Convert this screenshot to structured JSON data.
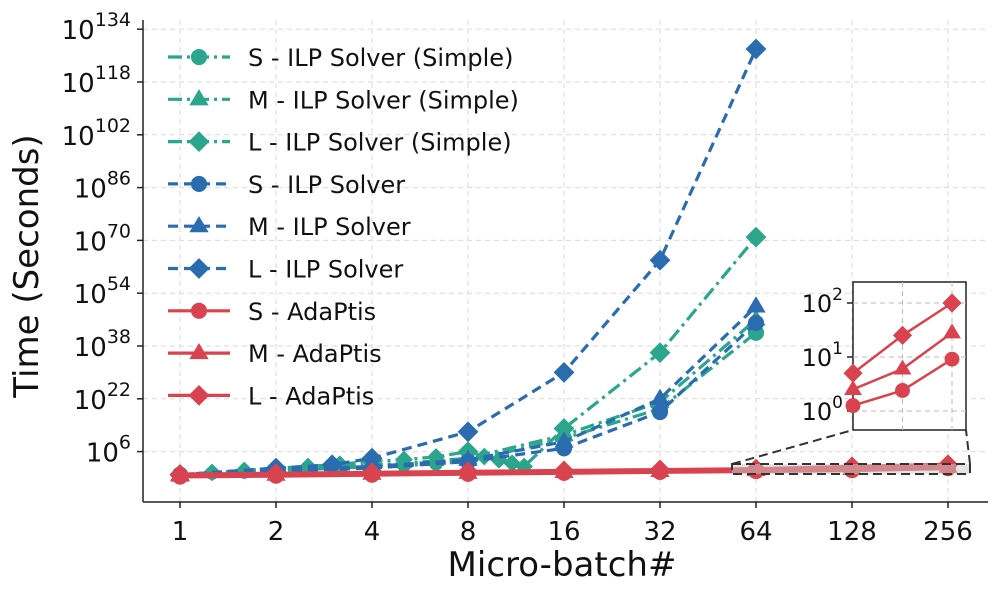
{
  "chart_data": {
    "type": "line",
    "yscale": "log",
    "xscale": "log2",
    "xlabel": "Micro-batch#",
    "ylabel": "Time (Seconds)",
    "x_ticks": [
      1,
      2,
      4,
      8,
      16,
      32,
      64,
      128,
      256
    ],
    "x_tick_labels": [
      "1",
      "2",
      "4",
      "8",
      "16",
      "32",
      "64",
      "128",
      "256"
    ],
    "y_ticks_exp": [
      6,
      22,
      38,
      54,
      70,
      86,
      102,
      118,
      134
    ],
    "y_tick_base": "10",
    "ylim_exp": [
      -9,
      136
    ],
    "grid": true,
    "legend_position": "top-left",
    "colors": {
      "simple": "#2ca58d",
      "ilp": "#2b6cb0",
      "adaptis": "#d9434f"
    },
    "series": [
      {
        "name": "S - ILP Solver (Simple)",
        "group": "simple",
        "marker": "circle",
        "dash": "dashdot",
        "x": [
          1,
          1.26,
          1.59,
          2,
          2.52,
          3.17,
          4,
          5.04,
          6.35,
          8,
          16,
          32,
          64
        ],
        "log10_y": [
          -1,
          -0.5,
          -0.2,
          0.2,
          0.6,
          1,
          1.4,
          1.8,
          2.3,
          3,
          10,
          19,
          42
        ]
      },
      {
        "name": "M - ILP Solver (Simple)",
        "group": "simple",
        "marker": "triangle",
        "dash": "dashdot",
        "x": [
          1,
          1.26,
          1.59,
          2,
          2.52,
          3.17,
          4,
          5.04,
          6.35,
          8,
          16,
          32,
          64
        ],
        "log10_y": [
          -1,
          -0.4,
          0,
          0.4,
          0.9,
          1.4,
          1.9,
          2.5,
          3.2,
          4,
          11,
          21,
          46
        ]
      },
      {
        "name": "L - ILP Solver (Simple)",
        "group": "simple",
        "marker": "diamond",
        "dash": "dashdot",
        "x": [
          1,
          1.26,
          1.59,
          2,
          2.52,
          3.17,
          4,
          5.04,
          6.35,
          8,
          9,
          10,
          11,
          12,
          16,
          32,
          64
        ],
        "log10_y": [
          -1,
          -0.3,
          0.3,
          1,
          1.5,
          2.2,
          3,
          3.6,
          4.4,
          6,
          4.5,
          3.5,
          2.5,
          1.5,
          13,
          36,
          71
        ]
      },
      {
        "name": "S - ILP Solver",
        "group": "ilp",
        "marker": "circle",
        "dash": "dashed",
        "x": [
          1,
          2,
          4,
          8,
          16,
          32,
          64
        ],
        "log10_y": [
          -1,
          0,
          1,
          3,
          7,
          18,
          45
        ]
      },
      {
        "name": "M - ILP Solver",
        "group": "ilp",
        "marker": "triangle",
        "dash": "dashed",
        "x": [
          1,
          2,
          4,
          8,
          16,
          32,
          64
        ],
        "log10_y": [
          -1,
          0.5,
          1.5,
          3.5,
          9,
          22,
          50
        ]
      },
      {
        "name": "L - ILP Solver",
        "group": "ilp",
        "marker": "diamond",
        "dash": "dashed",
        "x": [
          1,
          2,
          3,
          4,
          8,
          16,
          32,
          64
        ],
        "log10_y": [
          -1,
          1,
          2,
          4,
          12,
          30,
          64,
          128
        ]
      },
      {
        "name": "S - AdaPtis",
        "group": "adaptis",
        "marker": "circle",
        "dash": "solid",
        "x": [
          1,
          2,
          4,
          8,
          16,
          32,
          64,
          128,
          256
        ],
        "log10_y": [
          -1.55,
          -1.3,
          -1.0,
          -0.72,
          -0.44,
          -0.16,
          0.1,
          0.38,
          0.96
        ]
      },
      {
        "name": "M - AdaPtis",
        "group": "adaptis",
        "marker": "triangle",
        "dash": "solid",
        "x": [
          1,
          2,
          4,
          8,
          16,
          32,
          64,
          128,
          256
        ],
        "log10_y": [
          -1.25,
          -1.0,
          -0.7,
          -0.42,
          -0.14,
          0.14,
          0.4,
          0.78,
          1.45
        ]
      },
      {
        "name": "L - AdaPtis",
        "group": "adaptis",
        "marker": "diamond",
        "dash": "solid",
        "x": [
          1,
          2,
          4,
          8,
          16,
          32,
          64,
          128,
          256
        ],
        "log10_y": [
          -0.95,
          -0.7,
          -0.4,
          -0.12,
          0.16,
          0.44,
          0.7,
          1.4,
          2.0
        ]
      }
    ],
    "inset": {
      "x_range": [
        64,
        256
      ],
      "y_ticks_exp": [
        0,
        1,
        2
      ],
      "y_tick_labels_exp": [
        "0",
        "1",
        "2"
      ],
      "indicator_x_range": [
        64,
        256
      ]
    }
  }
}
